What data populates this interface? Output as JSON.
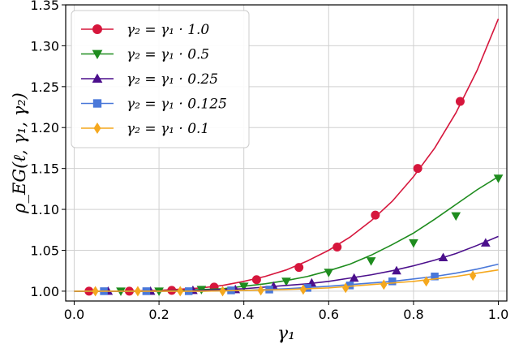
{
  "chart_data": {
    "type": "line",
    "xlabel": "γ₁",
    "ylabel": "ρ_EG(ℓ, γ₁, γ₂)",
    "xlim": [
      -0.02,
      1.02
    ],
    "ylim": [
      0.988,
      1.35
    ],
    "xticks": [
      "0.0",
      "0.2",
      "0.4",
      "0.6",
      "0.8",
      "1.0"
    ],
    "xtick_values": [
      0.0,
      0.2,
      0.4,
      0.6,
      0.8,
      1.0
    ],
    "yticks": [
      "1.00",
      "1.05",
      "1.10",
      "1.15",
      "1.20",
      "1.25",
      "1.30",
      "1.35"
    ],
    "ytick_values": [
      1.0,
      1.05,
      1.1,
      1.15,
      1.2,
      1.25,
      1.3,
      1.35
    ],
    "grid": true,
    "legend_position": "top-left",
    "series": [
      {
        "name": "γ₂ = γ₁ · 1.0",
        "color": "#d6163c",
        "marker": "circle",
        "curve_x": [
          0.0,
          0.1,
          0.2,
          0.3,
          0.35,
          0.4,
          0.45,
          0.5,
          0.55,
          0.6,
          0.65,
          0.7,
          0.75,
          0.8,
          0.85,
          0.9,
          0.95,
          1.0
        ],
        "curve_y": [
          1.0,
          1.0,
          1.001,
          1.004,
          1.007,
          1.012,
          1.018,
          1.026,
          1.037,
          1.05,
          1.066,
          1.086,
          1.11,
          1.14,
          1.175,
          1.218,
          1.27,
          1.333
        ],
        "points_x": [
          0.035,
          0.13,
          0.23,
          0.33,
          0.43,
          0.53,
          0.62,
          0.71,
          0.81,
          0.91
        ],
        "points_y": [
          1.0,
          1.0,
          1.001,
          1.005,
          1.014,
          1.029,
          1.054,
          1.093,
          1.15,
          1.232
        ]
      },
      {
        "name": "γ₂ = γ₁ · 0.5",
        "color": "#1e8c1e",
        "marker": "triangle-down",
        "curve_x": [
          0.0,
          0.1,
          0.2,
          0.3,
          0.35,
          0.4,
          0.45,
          0.5,
          0.55,
          0.6,
          0.65,
          0.7,
          0.75,
          0.8,
          0.85,
          0.9,
          0.95,
          1.0
        ],
        "curve_y": [
          1.0,
          1.0,
          1.0,
          1.002,
          1.003,
          1.006,
          1.009,
          1.013,
          1.018,
          1.025,
          1.033,
          1.044,
          1.057,
          1.071,
          1.088,
          1.106,
          1.124,
          1.14
        ],
        "points_x": [
          0.11,
          0.2,
          0.3,
          0.4,
          0.5,
          0.6,
          0.7,
          0.8,
          0.9,
          1.0
        ],
        "points_y": [
          1.0,
          1.0,
          1.002,
          1.006,
          1.012,
          1.023,
          1.037,
          1.059,
          1.092,
          1.138
        ]
      },
      {
        "name": "γ₂ = γ₁ · 0.25",
        "color": "#4b0f8c",
        "marker": "triangle-up",
        "curve_x": [
          0.0,
          0.1,
          0.2,
          0.3,
          0.4,
          0.5,
          0.55,
          0.6,
          0.65,
          0.7,
          0.75,
          0.8,
          0.85,
          0.9,
          0.95,
          1.0
        ],
        "curve_y": [
          1.0,
          1.0,
          1.0,
          1.001,
          1.003,
          1.007,
          1.009,
          1.012,
          1.016,
          1.02,
          1.025,
          1.031,
          1.038,
          1.046,
          1.056,
          1.067
        ],
        "points_x": [
          0.08,
          0.18,
          0.28,
          0.38,
          0.47,
          0.56,
          0.66,
          0.76,
          0.87,
          0.97
        ],
        "points_y": [
          1.0,
          1.0,
          1.001,
          1.002,
          1.006,
          1.01,
          1.016,
          1.025,
          1.041,
          1.059
        ]
      },
      {
        "name": "γ₂ = γ₁ · 0.125",
        "color": "#4a78d9",
        "marker": "square",
        "curve_x": [
          0.0,
          0.1,
          0.2,
          0.3,
          0.4,
          0.5,
          0.6,
          0.7,
          0.75,
          0.8,
          0.85,
          0.9,
          0.95,
          1.0
        ],
        "curve_y": [
          1.0,
          1.0,
          1.0,
          1.0,
          1.001,
          1.003,
          1.006,
          1.01,
          1.012,
          1.015,
          1.018,
          1.022,
          1.027,
          1.033
        ],
        "points_x": [
          0.07,
          0.17,
          0.27,
          0.37,
          0.46,
          0.55,
          0.65,
          0.75,
          0.85
        ],
        "points_y": [
          1.0,
          1.0,
          1.0,
          1.001,
          1.002,
          1.004,
          1.007,
          1.012,
          1.018
        ]
      },
      {
        "name": "γ₂ = γ₁ · 0.1",
        "color": "#f5a81e",
        "marker": "diamond",
        "curve_x": [
          0.0,
          0.1,
          0.2,
          0.3,
          0.4,
          0.5,
          0.6,
          0.7,
          0.8,
          0.85,
          0.9,
          0.95,
          1.0
        ],
        "curve_y": [
          1.0,
          1.0,
          1.0,
          1.0,
          1.001,
          1.002,
          1.004,
          1.008,
          1.012,
          1.015,
          1.018,
          1.022,
          1.026
        ],
        "points_x": [
          0.05,
          0.15,
          0.25,
          0.35,
          0.44,
          0.54,
          0.64,
          0.73,
          0.83,
          0.94
        ],
        "points_y": [
          1.0,
          1.0,
          1.0,
          1.0,
          1.001,
          1.002,
          1.004,
          1.008,
          1.012,
          1.019
        ]
      }
    ]
  }
}
